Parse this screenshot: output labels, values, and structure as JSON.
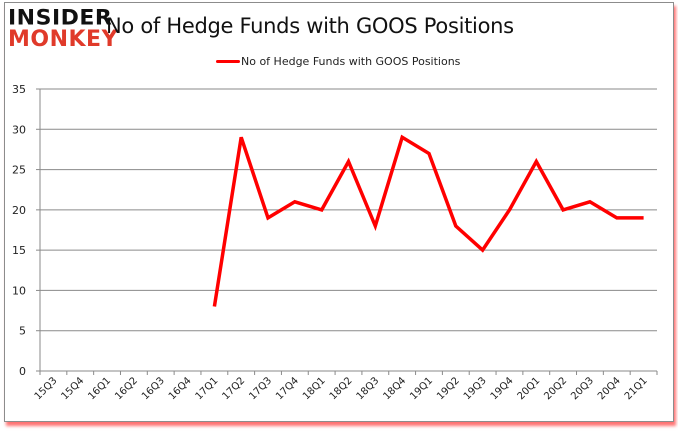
{
  "logo": {
    "line1": "INSIDER",
    "line2": "MONKEY"
  },
  "header": {
    "title": "No of Hedge Funds with GOOS Positions"
  },
  "legend": {
    "label": "No of Hedge Funds with GOOS Positions",
    "color": "#ff0000"
  },
  "chart_data": {
    "type": "line",
    "title": "No of Hedge Funds with GOOS Positions",
    "xlabel": "",
    "ylabel": "",
    "ylim": [
      0,
      35
    ],
    "yticks": [
      0,
      5,
      10,
      15,
      20,
      25,
      30,
      35
    ],
    "grid": true,
    "legend_position": "top",
    "categories": [
      "15Q3",
      "15Q4",
      "16Q1",
      "16Q2",
      "16Q3",
      "16Q4",
      "17Q1",
      "17Q2",
      "17Q3",
      "17Q4",
      "18Q1",
      "18Q2",
      "18Q3",
      "18Q4",
      "19Q1",
      "19Q2",
      "19Q3",
      "19Q4",
      "20Q1",
      "20Q2",
      "20Q3",
      "20Q4",
      "21Q1"
    ],
    "series": [
      {
        "name": "No of Hedge Funds with GOOS Positions",
        "color": "#ff0000",
        "values": [
          null,
          null,
          null,
          null,
          null,
          null,
          8,
          29,
          19,
          21,
          20,
          26,
          18,
          29,
          27,
          18,
          15,
          20,
          26,
          20,
          21,
          19,
          19
        ]
      }
    ]
  }
}
